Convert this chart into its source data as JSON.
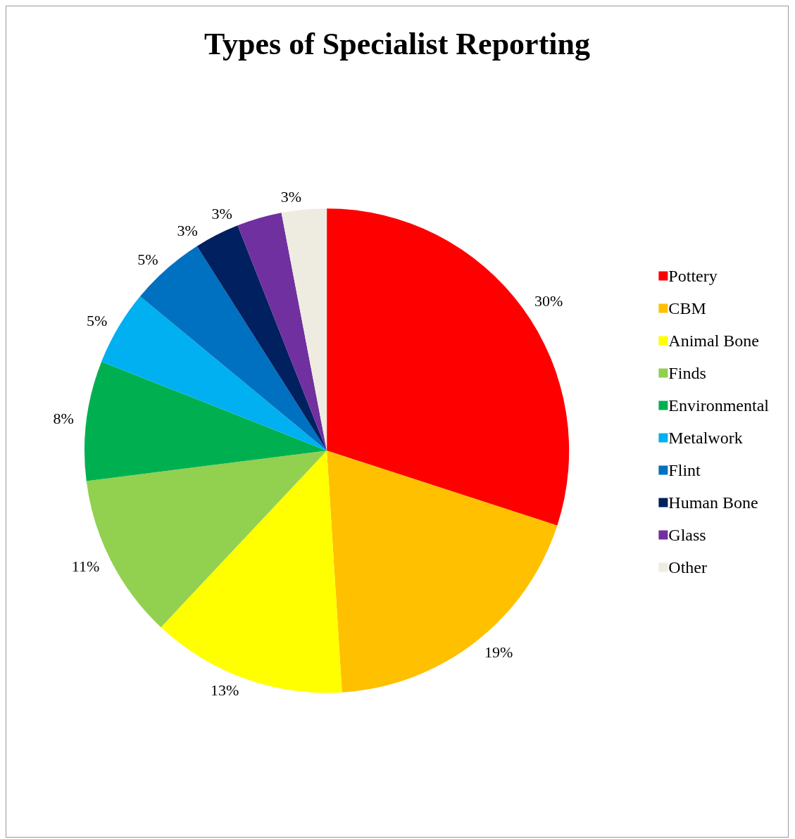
{
  "chart_data": {
    "type": "pie",
    "title": "Types of Specialist Reporting",
    "categories": [
      "Pottery",
      "CBM",
      "Animal Bone",
      "Finds",
      "Environmental",
      "Metalwork",
      "Flint",
      "Human Bone",
      "Glass",
      "Other"
    ],
    "values": [
      30,
      19,
      13,
      11,
      8,
      5,
      5,
      3,
      3,
      3
    ],
    "value_labels": [
      "30%",
      "19%",
      "13%",
      "11%",
      "8%",
      "5%",
      "5%",
      "3%",
      "3%",
      "3%"
    ],
    "colors": [
      "#ff0000",
      "#ffc000",
      "#ffff00",
      "#92d050",
      "#00b050",
      "#00b0f0",
      "#0070c0",
      "#002060",
      "#7030a0",
      "#eeece1"
    ],
    "legend": "right"
  }
}
